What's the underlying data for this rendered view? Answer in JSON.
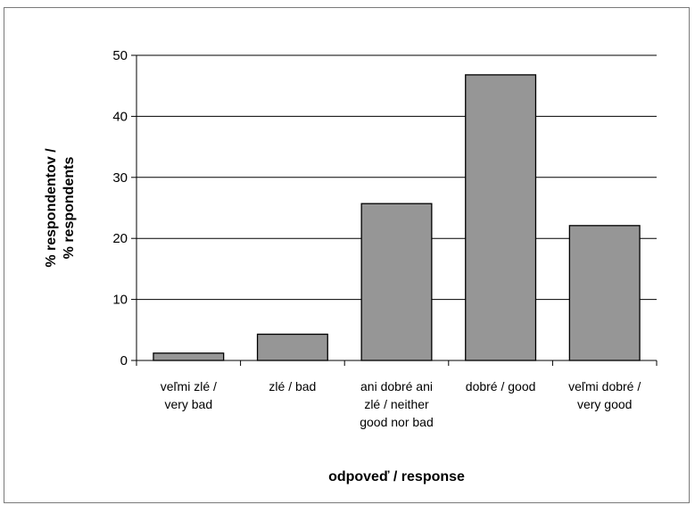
{
  "chart_data": {
    "type": "bar",
    "categories": [
      [
        "veľmi zlé /",
        "very bad"
      ],
      [
        "zlé / bad"
      ],
      [
        "ani dobré ani",
        "zlé / neither",
        "good nor bad"
      ],
      [
        "dobré / good"
      ],
      [
        "veľmi dobré /",
        "very good"
      ]
    ],
    "values": [
      1.2,
      4.3,
      25.7,
      46.8,
      22.1
    ],
    "xlabel": "odpoveď / response",
    "ylabel": [
      "% respondentov /",
      "% respondents"
    ],
    "ylim": [
      0,
      50
    ],
    "yticks": [
      0,
      10,
      20,
      30,
      40,
      50
    ],
    "grid": true,
    "bar_color": "#969696"
  }
}
